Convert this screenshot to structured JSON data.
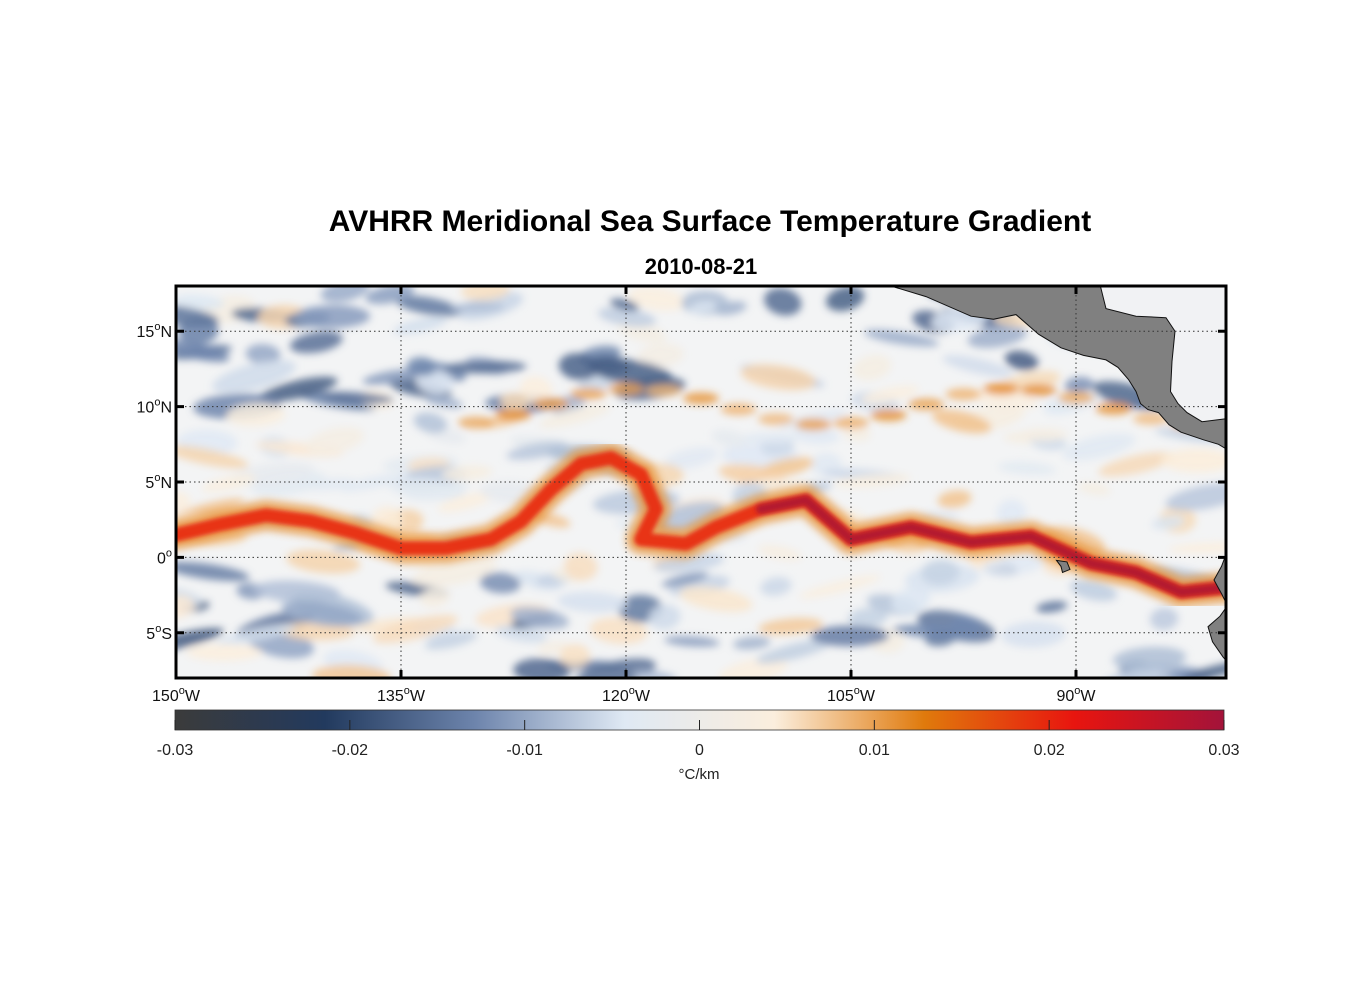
{
  "chart_data": {
    "type": "heatmap",
    "title": "AVHRR Meridional Sea Surface Temperature Gradient",
    "subtitle": "2010-08-21",
    "colorbar_label": "°C/km",
    "xlim_lon": [
      -150,
      -80
    ],
    "ylim_lat": [
      -8,
      18
    ],
    "x_ticks": [
      {
        "value": -150,
        "deg": "150",
        "hem": "W"
      },
      {
        "value": -135,
        "deg": "135",
        "hem": "W"
      },
      {
        "value": -120,
        "deg": "120",
        "hem": "W"
      },
      {
        "value": -105,
        "deg": "105",
        "hem": "W"
      },
      {
        "value": -90,
        "deg": "90",
        "hem": "W"
      }
    ],
    "y_ticks": [
      {
        "value": 15,
        "deg": "15",
        "hem": "N"
      },
      {
        "value": 10,
        "deg": "10",
        "hem": "N"
      },
      {
        "value": 5,
        "deg": "5",
        "hem": "N"
      },
      {
        "value": 0,
        "deg": "0",
        "hem": ""
      },
      {
        "value": -5,
        "deg": "5",
        "hem": "S"
      }
    ],
    "color_limits": [
      -0.03,
      0.03
    ],
    "colorbar_ticks": [
      "-0.03",
      "-0.02",
      "-0.01",
      "0",
      "0.01",
      "0.02",
      "0.03"
    ],
    "colormap": [
      "#3b3b3b",
      "#223a5e",
      "#6d84ac",
      "#dfe9f4",
      "#fbeedd",
      "#e07a0c",
      "#e8150f",
      "#a3133a"
    ],
    "land_color": "#808080",
    "grid": "dotted",
    "features": {
      "equatorial_front": [
        [
          -150,
          1.5
        ],
        [
          -147,
          2.2
        ],
        [
          -144,
          2.8
        ],
        [
          -141,
          2.4
        ],
        [
          -138,
          1.6
        ],
        [
          -135,
          0.6
        ],
        [
          -132,
          0.6
        ],
        [
          -129,
          1.2
        ],
        [
          -127,
          2.4
        ],
        [
          -125,
          4.5
        ],
        [
          -123,
          6.2
        ],
        [
          -121,
          6.6
        ],
        [
          -119,
          5.5
        ],
        [
          -118,
          3.2
        ],
        [
          -119,
          1.2
        ],
        [
          -116,
          0.9
        ],
        [
          -114,
          2.0
        ],
        [
          -111,
          3.2
        ],
        [
          -108,
          3.8
        ],
        [
          -105,
          1.2
        ],
        [
          -101,
          2.0
        ],
        [
          -97,
          1.0
        ],
        [
          -93,
          1.4
        ],
        [
          -89,
          -0.4
        ],
        [
          -86,
          -1.0
        ],
        [
          -83,
          -2.3
        ],
        [
          -80,
          -2.0
        ]
      ]
    }
  }
}
